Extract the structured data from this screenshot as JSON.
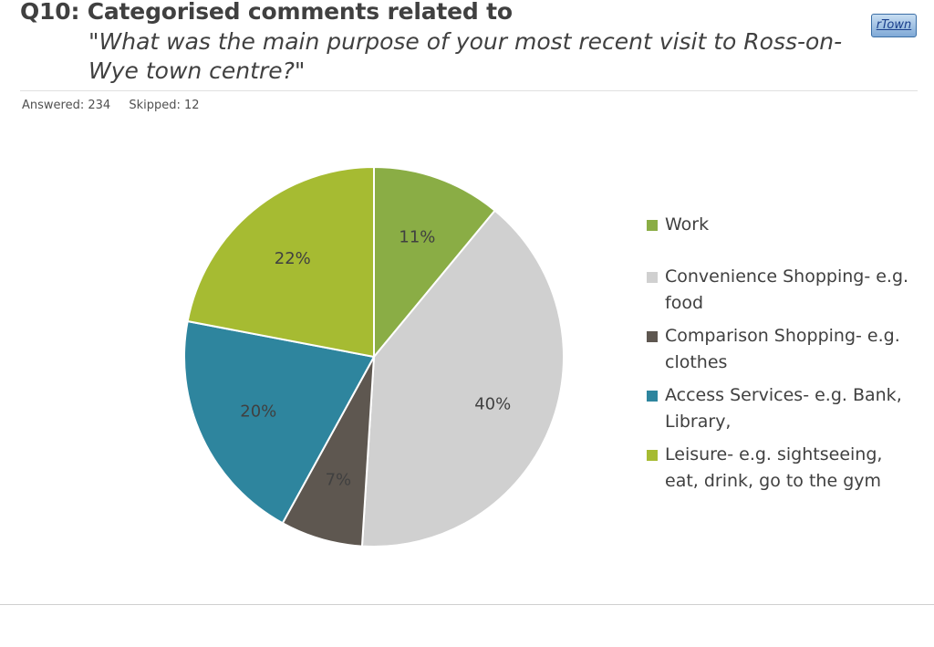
{
  "header": {
    "title": "Q10: Categorised comments related to",
    "question": "\"What was the main purpose of your most recent visit to Ross-on-Wye town centre?\"",
    "logo_text": "rTown",
    "answered": "Answered: 234",
    "skipped": "Skipped: 12"
  },
  "chart_data": {
    "type": "pie",
    "slices": [
      {
        "label": "Work",
        "value": 11,
        "display": "11%",
        "color": "#8aad45"
      },
      {
        "label": "Convenience Shopping- e.g. food",
        "value": 40,
        "display": "40%",
        "color": "#d0d0d0"
      },
      {
        "label": "Comparison Shopping- e.g. clothes",
        "value": 7,
        "display": "7%",
        "color": "#5e5750"
      },
      {
        "label": "Access Services- e.g. Bank, Library,",
        "value": 20,
        "display": "20%",
        "color": "#2e859e"
      },
      {
        "label": "Leisure- e.g. sightseeing, eat, drink, go to the gym",
        "value": 22,
        "display": "22%",
        "color": "#a6bb32"
      }
    ],
    "legend_position": "right"
  }
}
